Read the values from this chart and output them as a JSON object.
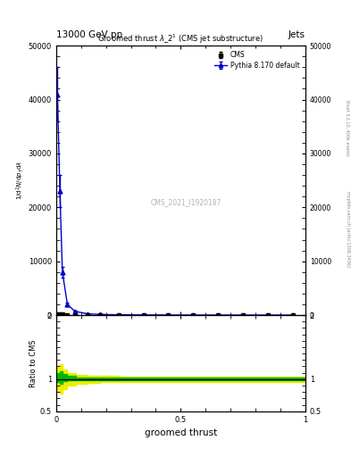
{
  "title_top": "13000 GeV pp",
  "title_right": "Jets",
  "plot_title": "Groomed thrust $\\lambda$_2$^1$ (CMS jet substructure)",
  "xlabel": "groomed thrust",
  "ylabel": "1 / mathrm{d}^{2}N / mathrm{d}p_{T} mathrm{d}lambda",
  "ylabel_ratio": "Ratio to CMS",
  "watermark": "CMS_2021_I1920187",
  "right_label": "Rivet 3.1.10, 400k events",
  "right_label2": "mcplots.cern.ch [arXiv:1306.3436]",
  "cms_x": [
    0.005,
    0.015,
    0.025,
    0.045,
    0.075,
    0.125,
    0.175,
    0.25,
    0.35,
    0.45,
    0.55,
    0.65,
    0.75,
    0.85,
    0.95
  ],
  "cms_y": [
    200,
    150,
    100,
    30,
    12,
    6,
    4,
    3,
    2,
    1.5,
    1.2,
    1.0,
    0.9,
    0.8,
    0.7
  ],
  "cms_yerr": [
    40,
    30,
    20,
    6,
    2,
    1,
    0.8,
    0.6,
    0.4,
    0.3,
    0.3,
    0.2,
    0.2,
    0.2,
    0.15
  ],
  "pythia_x": [
    0.005,
    0.015,
    0.025,
    0.045,
    0.075,
    0.125,
    0.175,
    0.25,
    0.35,
    0.45,
    0.55,
    0.65,
    0.75,
    0.85,
    0.95
  ],
  "pythia_y": [
    41000,
    23000,
    8000,
    2000,
    700,
    250,
    120,
    60,
    30,
    15,
    8,
    5,
    3,
    2,
    1
  ],
  "pythia_yerr": [
    5000,
    3000,
    1000,
    300,
    80,
    30,
    15,
    8,
    4,
    2,
    1,
    0.6,
    0.4,
    0.3,
    0.15
  ],
  "ratio_x": [
    0.0,
    0.01,
    0.02,
    0.03,
    0.06,
    0.1,
    0.15,
    0.2,
    0.3,
    0.4,
    0.5,
    0.6,
    0.7,
    0.8,
    0.9,
    1.0
  ],
  "ratio_center": [
    1.0,
    1.05,
    1.08,
    1.04,
    1.02,
    1.01,
    1.01,
    1.01,
    1.01,
    1.01,
    1.01,
    1.01,
    1.01,
    1.01,
    1.01,
    1.01
  ],
  "ratio_green_up": [
    1.0,
    1.1,
    1.13,
    1.08,
    1.05,
    1.03,
    1.03,
    1.02,
    1.02,
    1.02,
    1.02,
    1.02,
    1.02,
    1.02,
    1.02,
    1.02
  ],
  "ratio_green_dn": [
    1.0,
    0.95,
    0.93,
    0.97,
    0.98,
    0.98,
    0.98,
    0.99,
    0.99,
    0.99,
    0.99,
    0.99,
    0.99,
    0.99,
    0.99,
    0.99
  ],
  "ratio_yellow_up": [
    1.0,
    1.2,
    1.23,
    1.15,
    1.1,
    1.07,
    1.06,
    1.05,
    1.04,
    1.04,
    1.04,
    1.04,
    1.04,
    1.04,
    1.04,
    1.04
  ],
  "ratio_yellow_dn": [
    1.0,
    0.8,
    0.78,
    0.85,
    0.9,
    0.93,
    0.94,
    0.95,
    0.96,
    0.96,
    0.96,
    0.96,
    0.96,
    0.96,
    0.96,
    0.96
  ],
  "yticks_main": [
    0,
    10000,
    20000,
    30000,
    40000,
    50000
  ],
  "ytick_labels_main": [
    "0",
    "10000",
    "20000",
    "30000",
    "40000",
    "50000"
  ],
  "ylim_main": [
    0,
    50000
  ],
  "ylim_ratio": [
    0.5,
    2.0
  ],
  "xlim": [
    0,
    1
  ],
  "color_cms": "#000000",
  "color_pythia": "#0000cc",
  "color_green": "#00bb00",
  "color_yellow": "#eeee00",
  "background_color": "#ffffff"
}
